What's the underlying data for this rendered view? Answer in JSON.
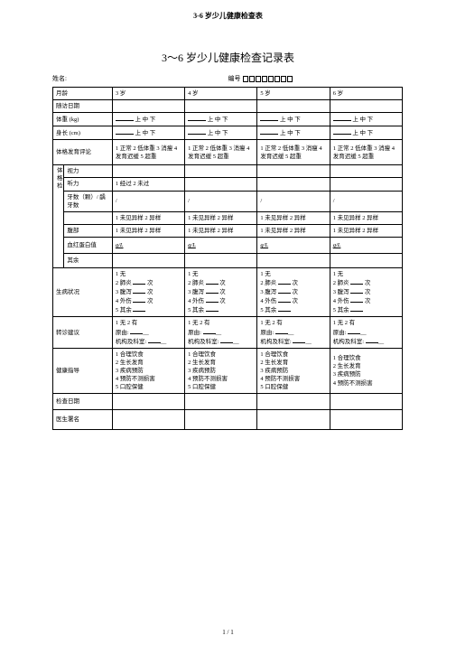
{
  "pageHeader": "3-6 岁少儿健康检查表",
  "title": "3～6 岁少儿健康检查记录表",
  "meta": {
    "nameLabel": "姓名:",
    "idLabel": "编号"
  },
  "rows": {
    "age": {
      "label": "月龄",
      "c3": "3 岁",
      "c4": "4 岁",
      "c5": "5 岁",
      "c6": "6 岁"
    },
    "visitDate": "随访日期",
    "weight": {
      "label": "体重 (kg)",
      "opt": "上 中 下"
    },
    "height": {
      "label": "身长 (cm)",
      "opt": "上 中 下"
    },
    "devEval": {
      "label": "体格发育评论",
      "text": "1 正常 2 低体重 3 消瘦 4 发育迟缓 5 超重"
    },
    "sideLabel": "体格检",
    "vision": "视力",
    "hearing": {
      "label": "听力",
      "c3": "1 经过 2 未过"
    },
    "teeth": "牙数（颗）/ 龋牙数",
    "unnamed": {
      "opt": "1 未见异样 2 异样"
    },
    "chest": {
      "label": "腹部",
      "opt": "1 未见异样 2 异样"
    },
    "hb": {
      "label": "血红蛋白值",
      "val": "g/L"
    },
    "other": "其余",
    "illness": {
      "label": "生病状况",
      "lines": [
        "1 无",
        "2 肺炎 ____ 次",
        "3 腹泻 ____ 次",
        "4 外伤 ____ 次",
        "5 其余 ____"
      ]
    },
    "referral": {
      "label": "转诊建议",
      "lines": [
        "1 无 2 有",
        "原由: ______",
        "机构及科室: ______"
      ]
    },
    "guidance": {
      "label": "健康指导",
      "c3": [
        "1 合理饮食",
        "2 生长发育",
        "3 疾病预防",
        "4 预防不测损害",
        "5 口腔保健"
      ],
      "c4": [
        "1 合理饮食",
        "2 生长发育",
        "3 疾病预防",
        "4 预防不测损害",
        "5 口腔保健"
      ],
      "c5": [
        "1 合理饮食",
        "2 生长发育",
        "3 疾病预防",
        "4 预防不测损害",
        "5 口腔保健"
      ],
      "c6": [
        "1 合理饮食",
        "2 生长发育",
        "3 疾病预防",
        "4 预防不测损害"
      ]
    },
    "checkDate": "检查日期",
    "doctorSign": "医生署名"
  },
  "footer": "1 / 1"
}
